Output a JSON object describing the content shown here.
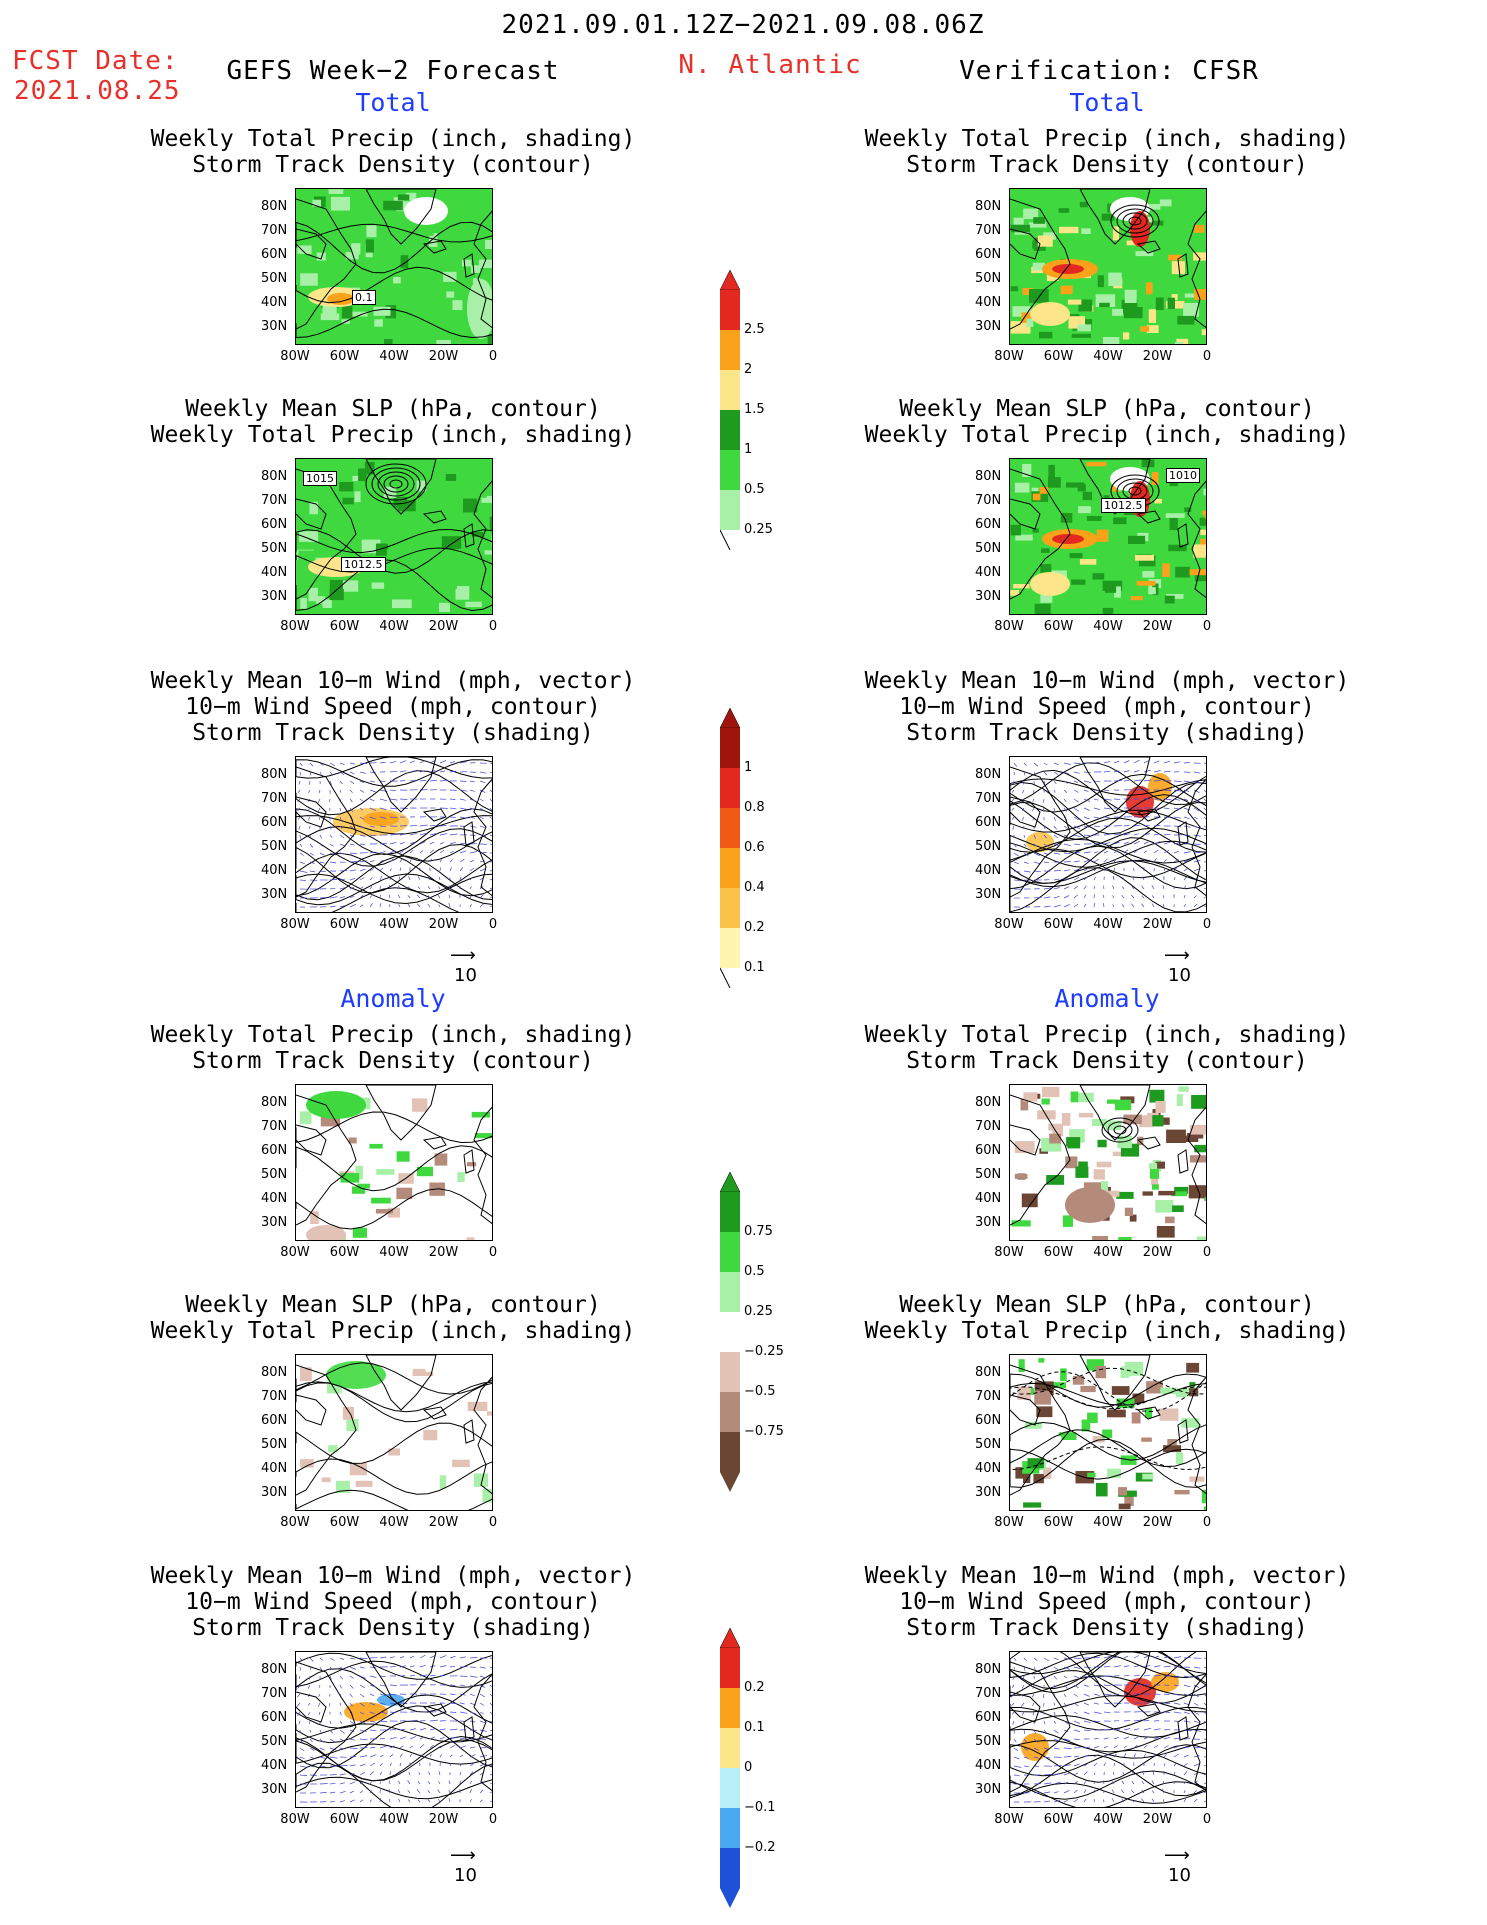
{
  "header": {
    "date_range": "2021.09.01.12Z−2021.09.08.06Z",
    "fcst_label": "FCST Date:",
    "fcst_date": "2021.08.25",
    "model": "GEFS Week−2 Forecast",
    "region": "N. Atlantic",
    "verification": "Verification: CFSR"
  },
  "sections": {
    "total": "Total",
    "anomaly": "Anomaly"
  },
  "titles": {
    "precip_track": [
      "Weekly Total Precip (inch, shading)",
      "Storm Track Density (contour)"
    ],
    "slp_precip": [
      "Weekly Mean SLP (hPa, contour)",
      "Weekly Total Precip (inch, shading)"
    ],
    "wind_track": [
      "Weekly Mean 10−m Wind (mph, vector)",
      "10−m Wind Speed (mph, contour)",
      "Storm Track Density (shading)"
    ]
  },
  "axes": {
    "lat_ticks": [
      "80N",
      "70N",
      "60N",
      "50N",
      "40N",
      "30N"
    ],
    "lon_ticks": [
      "80W",
      "60W",
      "40W",
      "20W",
      "0"
    ]
  },
  "vector_ref": "10",
  "contour_labels": {
    "fcst_precip_track": "0.1",
    "fcst_slp_a": "1015",
    "fcst_slp_b": "1012.5",
    "ver_slp_a": "1010",
    "ver_slp_b": "1012.5"
  },
  "colorbars": {
    "precip_total": {
      "labels": [
        "2.5",
        "2",
        "1.5",
        "1",
        "0.5",
        "0.25"
      ],
      "colors": [
        "#e2281f",
        "#f9a21a",
        "#fde58a",
        "#1e9a1e",
        "#3fd93f",
        "#a8f0a8"
      ]
    },
    "track_total": {
      "labels": [
        "1",
        "0.8",
        "0.6",
        "0.4",
        "0.2",
        "0.1"
      ],
      "colors": [
        "#a0140e",
        "#e2281f",
        "#f05a14",
        "#f9a21a",
        "#fbc24a",
        "#fef5b0"
      ]
    },
    "precip_anom": {
      "labels": [
        "0.75",
        "0.5",
        "0.25",
        "−0.25",
        "−0.5",
        "−0.75"
      ],
      "colors": [
        "#1e9a1e",
        "#3fd93f",
        "#a8f0a8",
        "#ffffff",
        "#e3c2b6",
        "#b48a7a",
        "#6b4634"
      ]
    },
    "track_anom": {
      "labels": [
        "0.2",
        "0.1",
        "0",
        "−0.1",
        "−0.2"
      ],
      "colors": [
        "#e2281f",
        "#f9a21a",
        "#fde58a",
        "#b8f0f8",
        "#4aa8f0",
        "#1e50d8"
      ]
    }
  }
}
